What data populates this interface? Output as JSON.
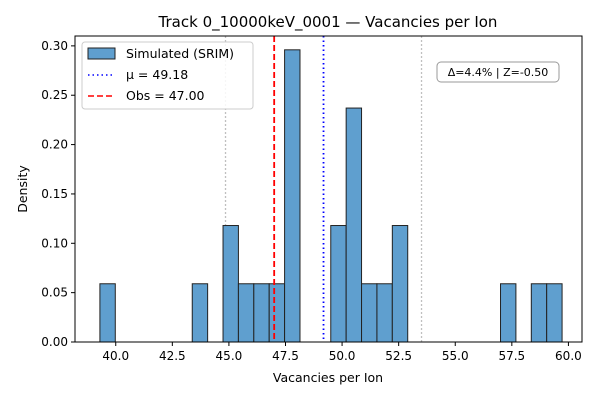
{
  "chart_data": {
    "type": "bar",
    "title": "Track 0_10000keV_0001 — Vacancies per Ion",
    "xlabel": "Vacancies per Ion",
    "ylabel": "Density",
    "xlim": [
      38.2,
      60.6
    ],
    "ylim": [
      0,
      0.31
    ],
    "x_ticks": [
      40.0,
      42.5,
      45.0,
      47.5,
      50.0,
      52.5,
      55.0,
      57.5,
      60.0
    ],
    "x_tick_labels": [
      "40.0",
      "42.5",
      "45.0",
      "47.5",
      "50.0",
      "52.5",
      "55.0",
      "57.5",
      "60.0"
    ],
    "y_ticks": [
      0.0,
      0.05,
      0.1,
      0.15,
      0.2,
      0.25,
      0.3
    ],
    "y_tick_labels": [
      "0.00",
      "0.05",
      "0.10",
      "0.15",
      "0.20",
      "0.25",
      "0.30"
    ],
    "bin_width": 0.68,
    "bars": [
      {
        "x0": 39.3,
        "value": 0.059
      },
      {
        "x0": 43.38,
        "value": 0.059
      },
      {
        "x0": 44.74,
        "value": 0.118
      },
      {
        "x0": 45.42,
        "value": 0.059
      },
      {
        "x0": 46.1,
        "value": 0.059
      },
      {
        "x0": 46.78,
        "value": 0.059
      },
      {
        "x0": 47.46,
        "value": 0.296
      },
      {
        "x0": 49.5,
        "value": 0.118
      },
      {
        "x0": 50.18,
        "value": 0.237
      },
      {
        "x0": 50.86,
        "value": 0.059
      },
      {
        "x0": 51.54,
        "value": 0.059
      },
      {
        "x0": 52.22,
        "value": 0.118
      },
      {
        "x0": 57.0,
        "value": 0.059
      },
      {
        "x0": 58.36,
        "value": 0.059
      },
      {
        "x0": 59.04,
        "value": 0.059
      }
    ],
    "mean": 49.18,
    "observed": 47.0,
    "sigma_lines": [
      44.85,
      53.51
    ],
    "legend": {
      "placement": "top-left",
      "items": [
        {
          "label": "Simulated (SRIM)",
          "kind": "patch"
        },
        {
          "label": "μ = 49.18",
          "kind": "dotted-line"
        },
        {
          "label": "Obs = 47.00",
          "kind": "dashed-line"
        }
      ]
    },
    "annotation": "Δ=4.4% | Z=-0.50",
    "colors": {
      "bar_fill": "#5f9fcf",
      "bar_edge": "#222222",
      "mean_line": "#0000ff",
      "obs_line": "#ff0000",
      "sigma_line": "#c0c0c0"
    }
  }
}
